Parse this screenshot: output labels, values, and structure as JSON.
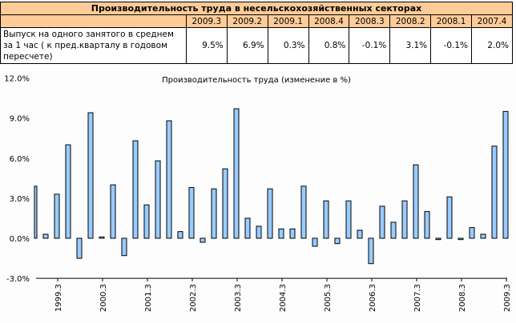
{
  "table": {
    "title": "Производительность труда в несельскохозяйственных секторах",
    "periods": [
      "2009.3",
      "2009.2",
      "2009.1",
      "2008.4",
      "2008.3",
      "2008.2",
      "2008.1",
      "2007.4"
    ],
    "row_label": "Выпуск на одного занятого в среднем за 1 час  ( к пред.кварталу в годовом пересчете)",
    "values": [
      "9.5%",
      "6.9%",
      "0.3%",
      "0.8%",
      "-0.1%",
      "3.1%",
      "-0.1%",
      "2.0%"
    ]
  },
  "colors": {
    "header_bg": "#FFCC99",
    "bar_fill": "#99CCFF",
    "bar_stroke": "#000000"
  },
  "chart_data": {
    "type": "bar",
    "title": "Производительность труда (изменение в %)",
    "xlabel": "",
    "ylabel": "",
    "ylim": [
      -3.0,
      12.0
    ],
    "yticks": [
      "-3.0%",
      "0.0%",
      "3.0%",
      "6.0%",
      "9.0%",
      "12.0%"
    ],
    "xtick_labels": [
      "1999.3",
      "2000.3",
      "2001.3",
      "2002.3",
      "2003.3",
      "2004.3",
      "2005.3",
      "2006.3",
      "2007.3",
      "2008.3",
      "2009.3"
    ],
    "grid": false,
    "legend": null,
    "categories": [
      "1999.1",
      "1999.2",
      "1999.3",
      "1999.4",
      "2000.1",
      "2000.2",
      "2000.3",
      "2000.4",
      "2001.1",
      "2001.2",
      "2001.3",
      "2001.4",
      "2002.1",
      "2002.2",
      "2002.3",
      "2002.4",
      "2003.1",
      "2003.2",
      "2003.3",
      "2003.4",
      "2004.1",
      "2004.2",
      "2004.3",
      "2004.4",
      "2005.1",
      "2005.2",
      "2005.3",
      "2005.4",
      "2006.1",
      "2006.2",
      "2006.3",
      "2006.4",
      "2007.1",
      "2007.2",
      "2007.3",
      "2007.4",
      "2008.1",
      "2008.2",
      "2008.3",
      "2008.4",
      "2009.1",
      "2009.2",
      "2009.3"
    ],
    "values": [
      3.9,
      0.3,
      3.3,
      7.0,
      -1.5,
      9.4,
      0.1,
      4.0,
      -1.3,
      7.3,
      2.5,
      5.8,
      8.8,
      0.5,
      3.8,
      -0.3,
      3.7,
      5.2,
      9.7,
      1.5,
      0.9,
      3.7,
      0.7,
      0.7,
      3.9,
      -0.6,
      2.8,
      -0.4,
      2.8,
      0.6,
      -1.9,
      2.4,
      1.2,
      2.8,
      5.5,
      2.0,
      -0.1,
      3.1,
      -0.1,
      0.8,
      0.3,
      6.9,
      9.5
    ]
  }
}
